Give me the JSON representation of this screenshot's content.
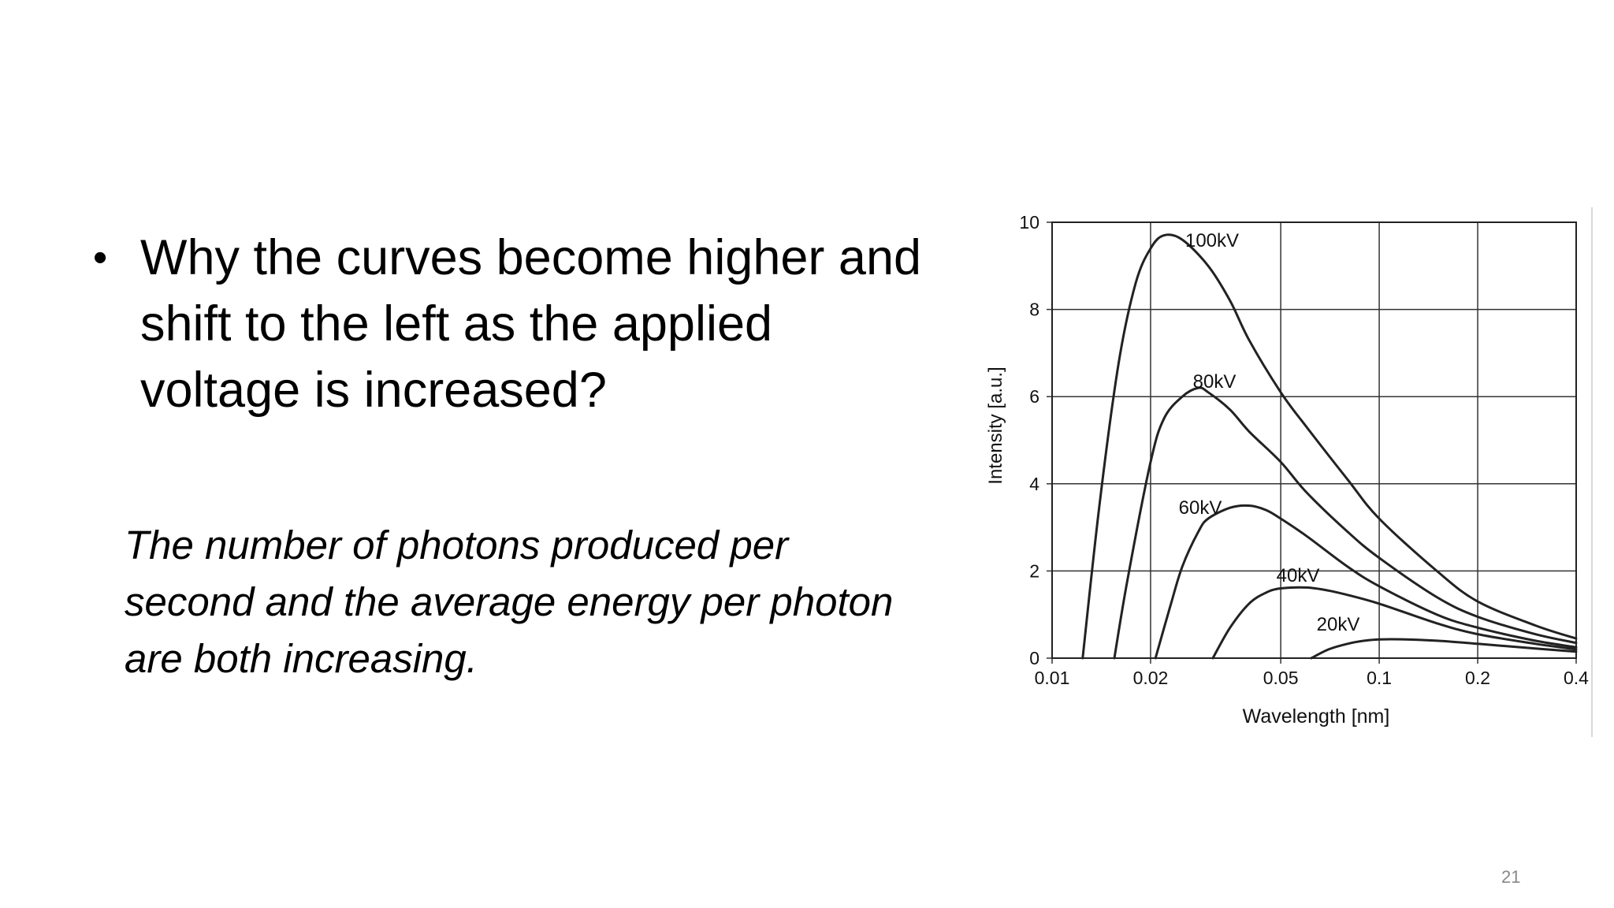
{
  "slide": {
    "bullet": "Why the curves become higher and shift to the left as the applied voltage is increased?",
    "answer": "The number of photons produced per second and the average energy per photon are both increasing.",
    "page_number": "21"
  },
  "chart_data": {
    "type": "line",
    "title": "",
    "xlabel": "Wavelength [nm]",
    "ylabel": "Intensity [a.u.]",
    "xscale": "log",
    "xlim": [
      0.01,
      0.4
    ],
    "ylim": [
      0,
      10
    ],
    "x_ticks": [
      0.01,
      0.02,
      0.05,
      0.1,
      0.2,
      0.4
    ],
    "x_tick_labels": [
      "0.01",
      "0.02",
      "0.05",
      "0.1",
      "0.2",
      "0.4"
    ],
    "y_ticks": [
      0,
      2,
      4,
      6,
      8,
      10
    ],
    "y_tick_labels": [
      "0",
      "2",
      "4",
      "6",
      "8",
      "10"
    ],
    "grid": true,
    "line_color": "#222222",
    "series": [
      {
        "name": "100kV",
        "x": [
          0.0124,
          0.014,
          0.016,
          0.018,
          0.02,
          0.022,
          0.025,
          0.03,
          0.035,
          0.04,
          0.05,
          0.06,
          0.08,
          0.1,
          0.15,
          0.2,
          0.3,
          0.4
        ],
        "values": [
          0,
          3.6,
          6.8,
          8.6,
          9.4,
          9.7,
          9.6,
          9.0,
          8.2,
          7.3,
          6.1,
          5.3,
          4.1,
          3.2,
          2.0,
          1.3,
          0.75,
          0.45
        ]
      },
      {
        "name": "80kV",
        "x": [
          0.0155,
          0.017,
          0.02,
          0.022,
          0.025,
          0.028,
          0.03,
          0.035,
          0.04,
          0.05,
          0.06,
          0.08,
          0.1,
          0.15,
          0.2,
          0.3,
          0.4
        ],
        "values": [
          0,
          1.8,
          4.5,
          5.5,
          6.0,
          6.2,
          6.1,
          5.7,
          5.2,
          4.5,
          3.8,
          2.9,
          2.3,
          1.4,
          0.95,
          0.55,
          0.35
        ]
      },
      {
        "name": "60kV",
        "x": [
          0.0207,
          0.023,
          0.025,
          0.028,
          0.03,
          0.035,
          0.04,
          0.045,
          0.05,
          0.06,
          0.08,
          0.1,
          0.15,
          0.2,
          0.3,
          0.4
        ],
        "values": [
          0,
          1.2,
          2.1,
          2.9,
          3.2,
          3.45,
          3.5,
          3.4,
          3.2,
          2.8,
          2.1,
          1.65,
          1.0,
          0.7,
          0.4,
          0.25
        ]
      },
      {
        "name": "40kV",
        "x": [
          0.031,
          0.035,
          0.04,
          0.045,
          0.05,
          0.06,
          0.07,
          0.08,
          0.1,
          0.15,
          0.2,
          0.3,
          0.4
        ],
        "values": [
          0,
          0.7,
          1.25,
          1.5,
          1.6,
          1.62,
          1.55,
          1.45,
          1.25,
          0.8,
          0.55,
          0.33,
          0.2
        ]
      },
      {
        "name": "20kV",
        "x": [
          0.062,
          0.07,
          0.08,
          0.09,
          0.1,
          0.12,
          0.15,
          0.2,
          0.3,
          0.4
        ],
        "values": [
          0,
          0.2,
          0.33,
          0.4,
          0.43,
          0.43,
          0.4,
          0.33,
          0.22,
          0.15
        ]
      }
    ]
  }
}
